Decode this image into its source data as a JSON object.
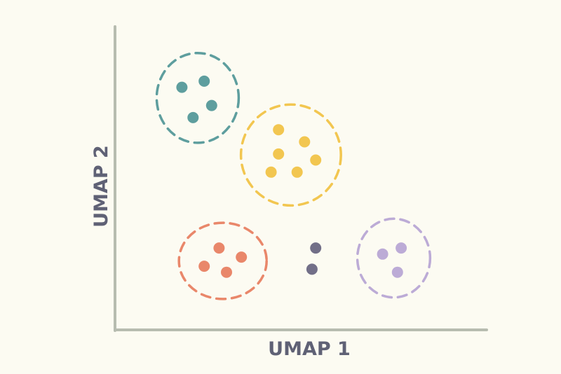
{
  "chart_data": {
    "type": "scatter",
    "title": "",
    "xlabel": "UMAP 1",
    "ylabel": "UMAP 2",
    "axes": {
      "axis_color": "#B7BCB0",
      "label_color": "#5F6175"
    },
    "grid": false,
    "legend": "none",
    "series": [
      {
        "color": "#5E9E9E",
        "boundary": "dashed",
        "points": [
          [
            0.18,
            0.8
          ],
          [
            0.24,
            0.82
          ],
          [
            0.26,
            0.74
          ],
          [
            0.21,
            0.7
          ]
        ]
      },
      {
        "color": "#F2C650",
        "boundary": "dashed",
        "points": [
          [
            0.44,
            0.66
          ],
          [
            0.51,
            0.62
          ],
          [
            0.44,
            0.58
          ],
          [
            0.54,
            0.56
          ],
          [
            0.42,
            0.52
          ],
          [
            0.49,
            0.52
          ]
        ]
      },
      {
        "color": "#E9876A",
        "boundary": "dashed",
        "points": [
          [
            0.28,
            0.27
          ],
          [
            0.34,
            0.24
          ],
          [
            0.24,
            0.21
          ],
          [
            0.3,
            0.19
          ]
        ]
      },
      {
        "color": "#726F88",
        "boundary": "none",
        "points": [
          [
            0.54,
            0.27
          ],
          [
            0.53,
            0.2
          ]
        ]
      },
      {
        "color": "#BCABD6",
        "boundary": "dashed",
        "points": [
          [
            0.72,
            0.25
          ],
          [
            0.77,
            0.27
          ],
          [
            0.76,
            0.19
          ]
        ]
      }
    ]
  }
}
